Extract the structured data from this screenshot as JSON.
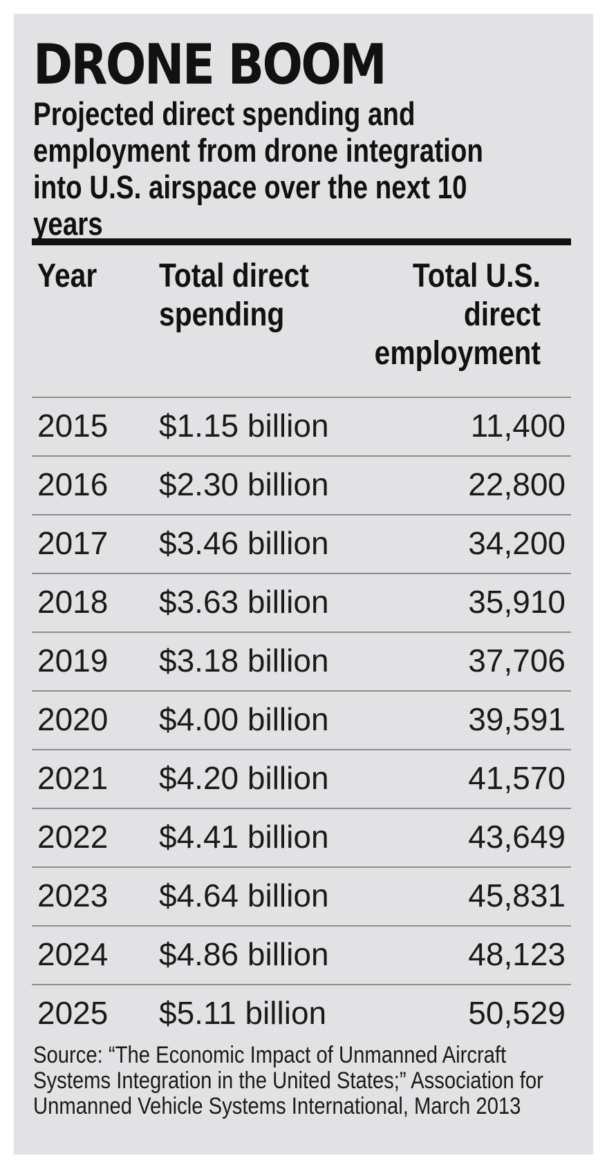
{
  "title": "DRONE BOOM",
  "subtitle": "Projected direct spending and employment from drone integration into U.S. airspace over the next 10 years",
  "columns": {
    "year": "Year",
    "spending": "Total direct spending",
    "employment": "Total U.S. direct employment"
  },
  "chart_data": {
    "type": "table",
    "title": "DRONE BOOM",
    "subtitle": "Projected direct spending and employment from drone integration into U.S. airspace over the next 10 years",
    "columns": [
      "Year",
      "Total direct spending",
      "Total U.S. direct employment"
    ],
    "rows": [
      {
        "year": "2015",
        "spending": "$1.15 billion",
        "employment": "11,400"
      },
      {
        "year": "2016",
        "spending": "$2.30 billion",
        "employment": "22,800"
      },
      {
        "year": "2017",
        "spending": "$3.46 billion",
        "employment": "34,200"
      },
      {
        "year": "2018",
        "spending": "$3.63 billion",
        "employment": "35,910"
      },
      {
        "year": "2019",
        "spending": "$3.18 billion",
        "employment": "37,706"
      },
      {
        "year": "2020",
        "spending": "$4.00 billion",
        "employment": "39,591"
      },
      {
        "year": "2021",
        "spending": "$4.20 billion",
        "employment": "41,570"
      },
      {
        "year": "2022",
        "spending": "$4.41 billion",
        "employment": "43,649"
      },
      {
        "year": "2023",
        "spending": "$4.64 billion",
        "employment": "45,831"
      },
      {
        "year": "2024",
        "spending": "$4.86 billion",
        "employment": "48,123"
      },
      {
        "year": "2025",
        "spending": "$5.11 billion",
        "employment": "50,529"
      }
    ],
    "source": "Source: “The Economic Impact of Unmanned Aircraft Systems Integration in the United States;” Association for Unmanned Vehicle Systems International, March 2013"
  },
  "source": "Source: “The Economic Impact of Unmanned Aircraft Systems Integration in the United States;” Association for Unmanned Vehicle Systems International, March 2013"
}
